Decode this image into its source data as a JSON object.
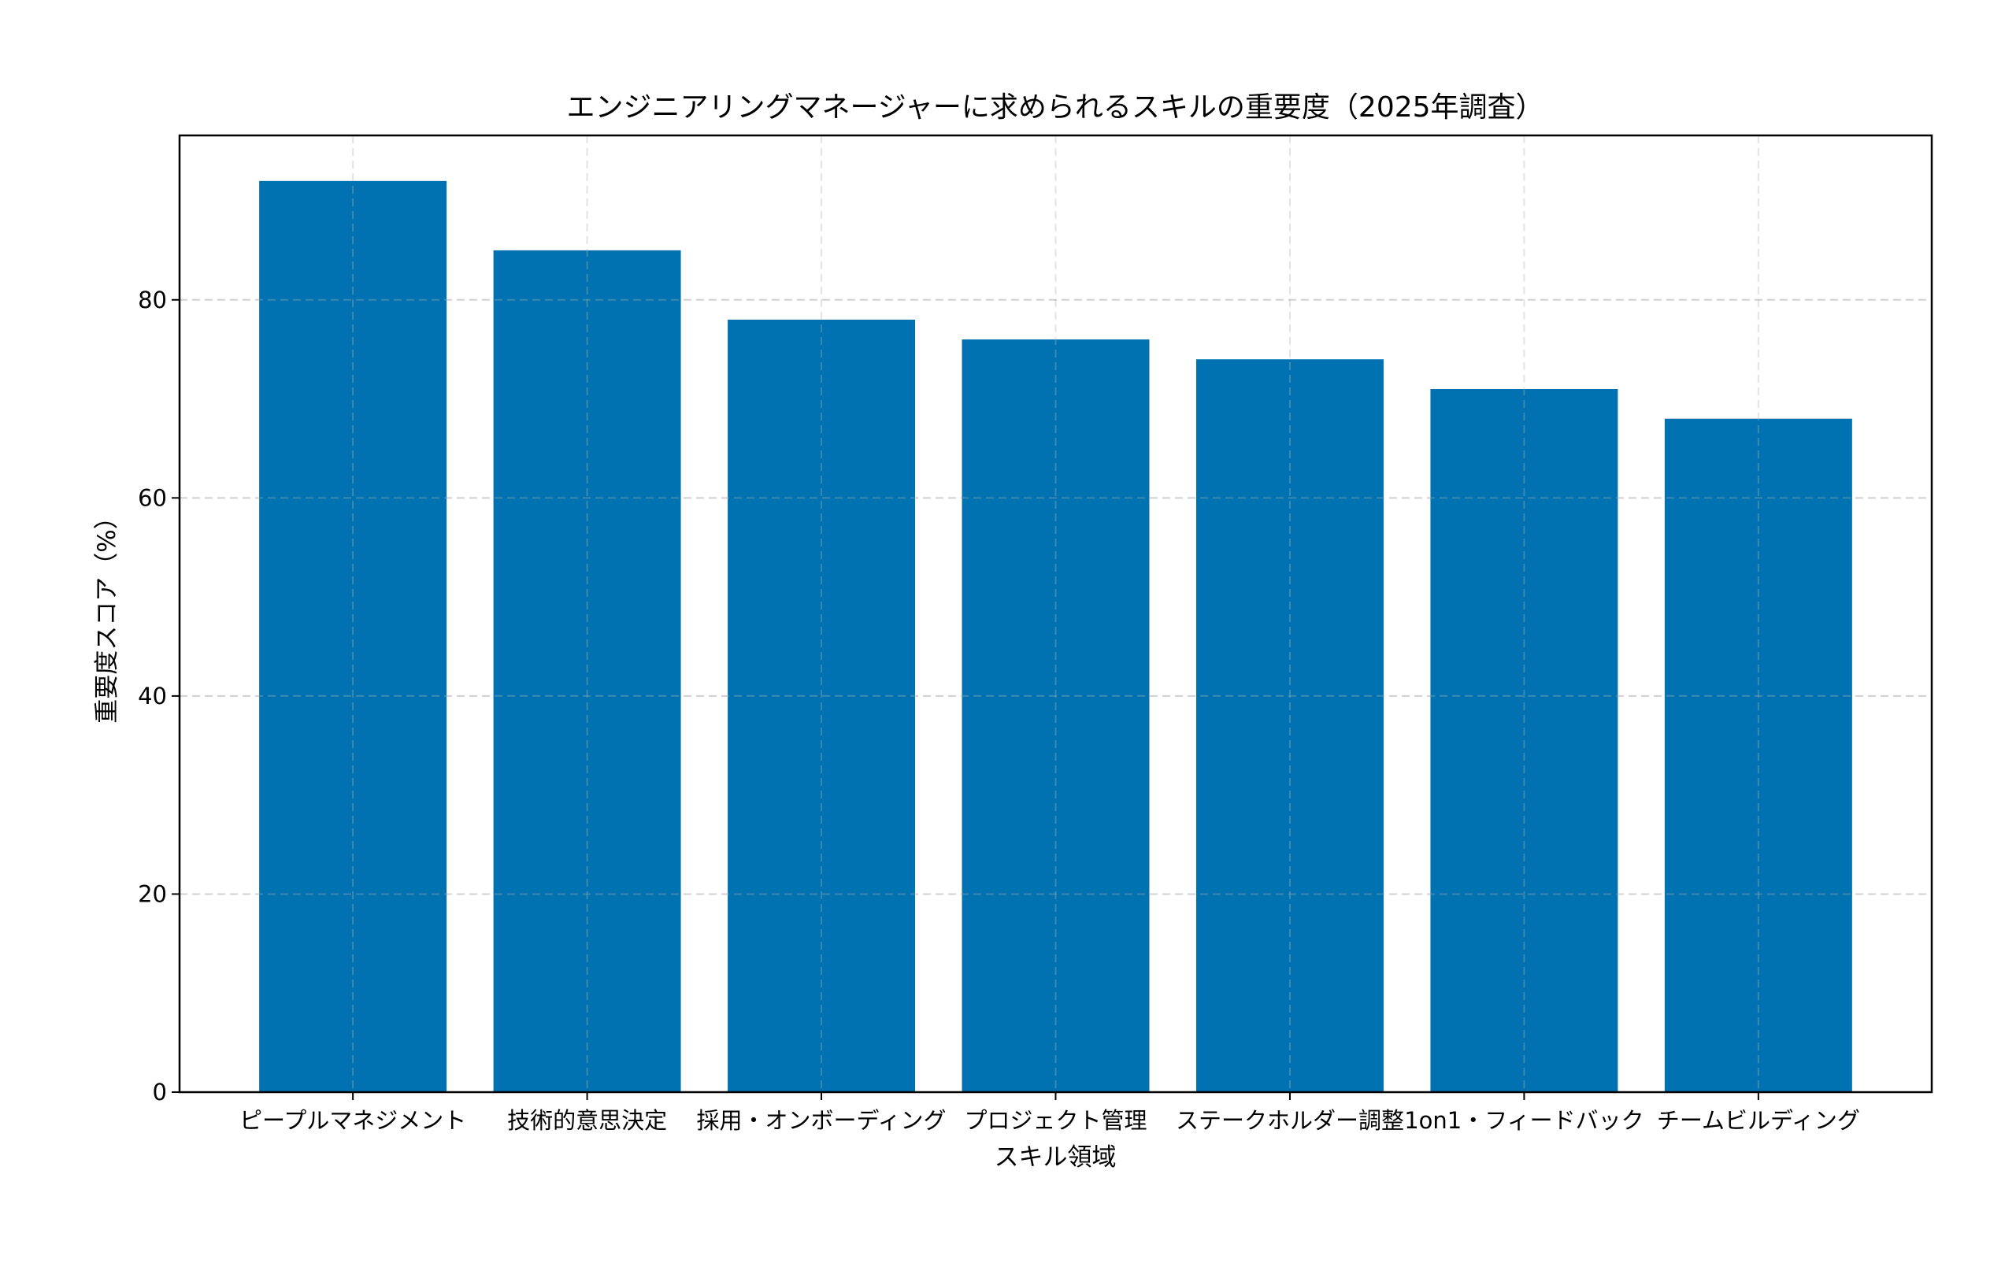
{
  "chart_data": {
    "type": "bar",
    "title": "エンジニアリングマネージャーに求められるスキルの重要度（2025年調査）",
    "xlabel": "スキル領域",
    "ylabel": "重要度スコア（%）",
    "categories": [
      "ピープルマネジメント",
      "技術的意思決定",
      "採用・オンボーディング",
      "プロジェクト管理",
      "ステークホルダー調整",
      "1on1・フィードバック",
      "チームビルディング"
    ],
    "values": [
      92,
      85,
      78,
      76,
      74,
      71,
      68
    ],
    "ylim": [
      0,
      96.6
    ],
    "yticks": [
      0,
      20,
      40,
      60,
      80
    ],
    "grid": true,
    "bar_color": "#0072B2"
  }
}
